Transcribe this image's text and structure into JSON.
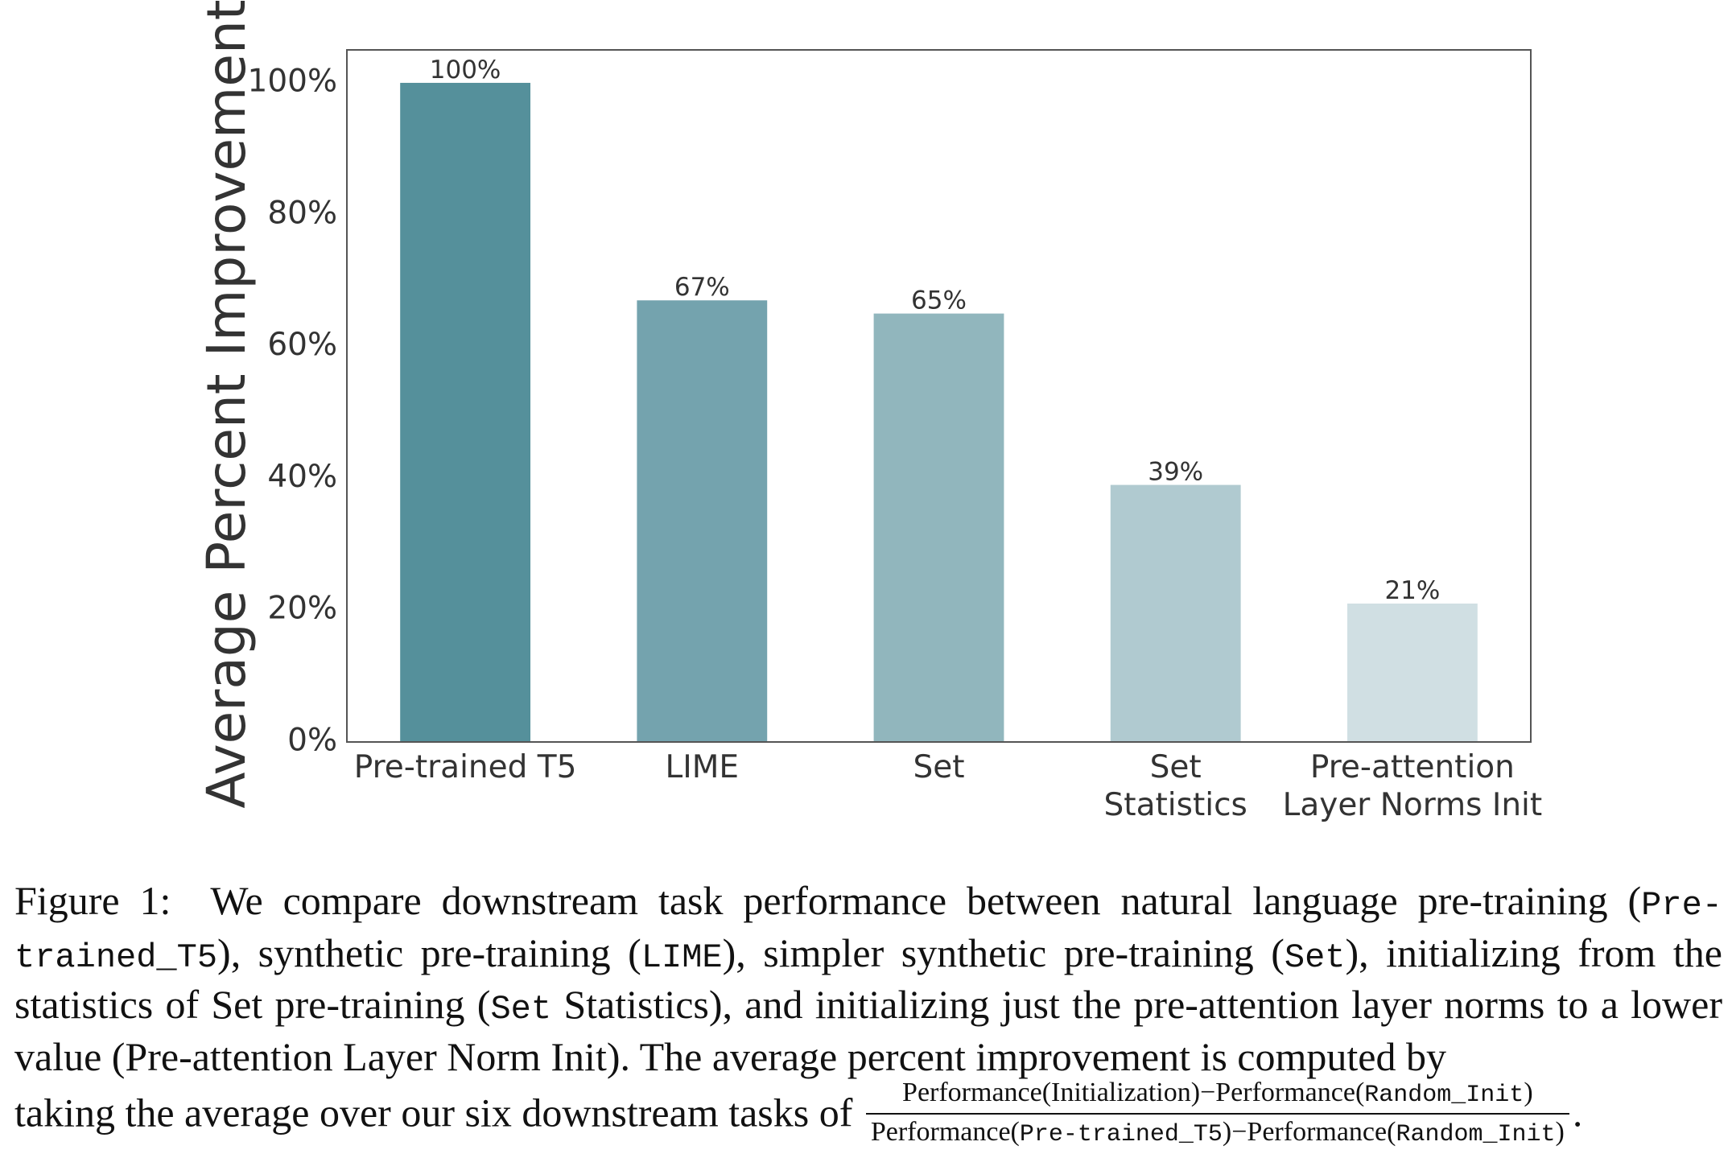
{
  "chart_data": {
    "type": "bar",
    "categories": [
      "Pre-trained T5",
      "LIME",
      "Set",
      "Set Statistics",
      "Pre-attention Layer Norms Init"
    ],
    "category_lines": [
      [
        "Pre-trained T5"
      ],
      [
        "LIME"
      ],
      [
        "Set"
      ],
      [
        "Set",
        "Statistics"
      ],
      [
        "Pre-attention",
        "Layer Norms Init"
      ]
    ],
    "values": [
      100,
      67,
      65,
      39,
      21
    ],
    "data_labels": [
      "100%",
      "67%",
      "65%",
      "39%",
      "21%"
    ],
    "bar_colors": [
      "#55909b",
      "#74a3ae",
      "#91b6bd",
      "#b0cad0",
      "#d0dfe3"
    ],
    "ylabel": "Average Percent Improvement",
    "xlabel": "",
    "ylim": [
      0,
      105
    ],
    "yticks": [
      0,
      20,
      40,
      60,
      80,
      100
    ],
    "ytick_labels": [
      "0%",
      "20%",
      "40%",
      "60%",
      "80%",
      "100%"
    ],
    "grid": false,
    "legend": "none"
  },
  "caption": {
    "label": "Figure 1:",
    "text_1": "We compare downstream task performance between natural language pre-training (",
    "code_pretrained": "Pre-trained_T5",
    "text_2": "), synthetic pre-training (",
    "code_lime": "LIME",
    "text_3": "), simpler synthetic pre-training (",
    "code_set": "Set",
    "text_4": "), initializing from the statistics of Set pre-training (",
    "code_set2": "Set",
    "text_5": " Statistics), and initializing just the pre-attention layer norms to a lower value (Pre-attention Layer Norm Init). The average percent improvement is computed by",
    "text_6": "taking the average over our six downstream tasks of",
    "frac_num_a": "Performance(Initialization)−Performance(",
    "frac_num_code": "Random_Init",
    "frac_num_b": ")",
    "frac_den_a": "Performance(",
    "frac_den_code1": "Pre-trained_T5",
    "frac_den_b": ")−Performance(",
    "frac_den_code2": "Random_Init",
    "frac_den_c": ")",
    "end_mark": "."
  }
}
